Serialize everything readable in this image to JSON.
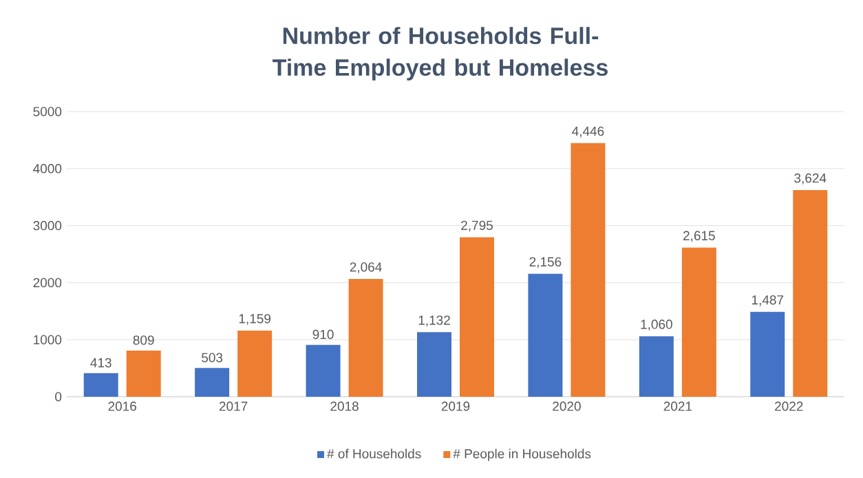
{
  "chart_data": {
    "type": "bar",
    "title": "Number of Households Full-Time Employed but Homeless",
    "categories": [
      "2016",
      "2017",
      "2018",
      "2019",
      "2020",
      "2021",
      "2022"
    ],
    "series": [
      {
        "name": "# of Households",
        "color": "#4472c4",
        "values": [
          413,
          503,
          910,
          1132,
          2156,
          1060,
          1487
        ],
        "value_labels": [
          "413",
          "503",
          "910",
          "1,132",
          "2,156",
          "1,060",
          "1,487"
        ]
      },
      {
        "name": "# People in Households",
        "color": "#ed7d31",
        "values": [
          809,
          1159,
          2064,
          2795,
          4446,
          2615,
          3624
        ],
        "value_labels": [
          "809",
          "1,159",
          "2,064",
          "2,795",
          "4,446",
          "2,615",
          "3,624"
        ]
      }
    ],
    "ylim": [
      0,
      5000
    ],
    "yticks": [
      0,
      1000,
      2000,
      3000,
      4000,
      5000
    ],
    "grid": "y",
    "legend": "bottom"
  }
}
